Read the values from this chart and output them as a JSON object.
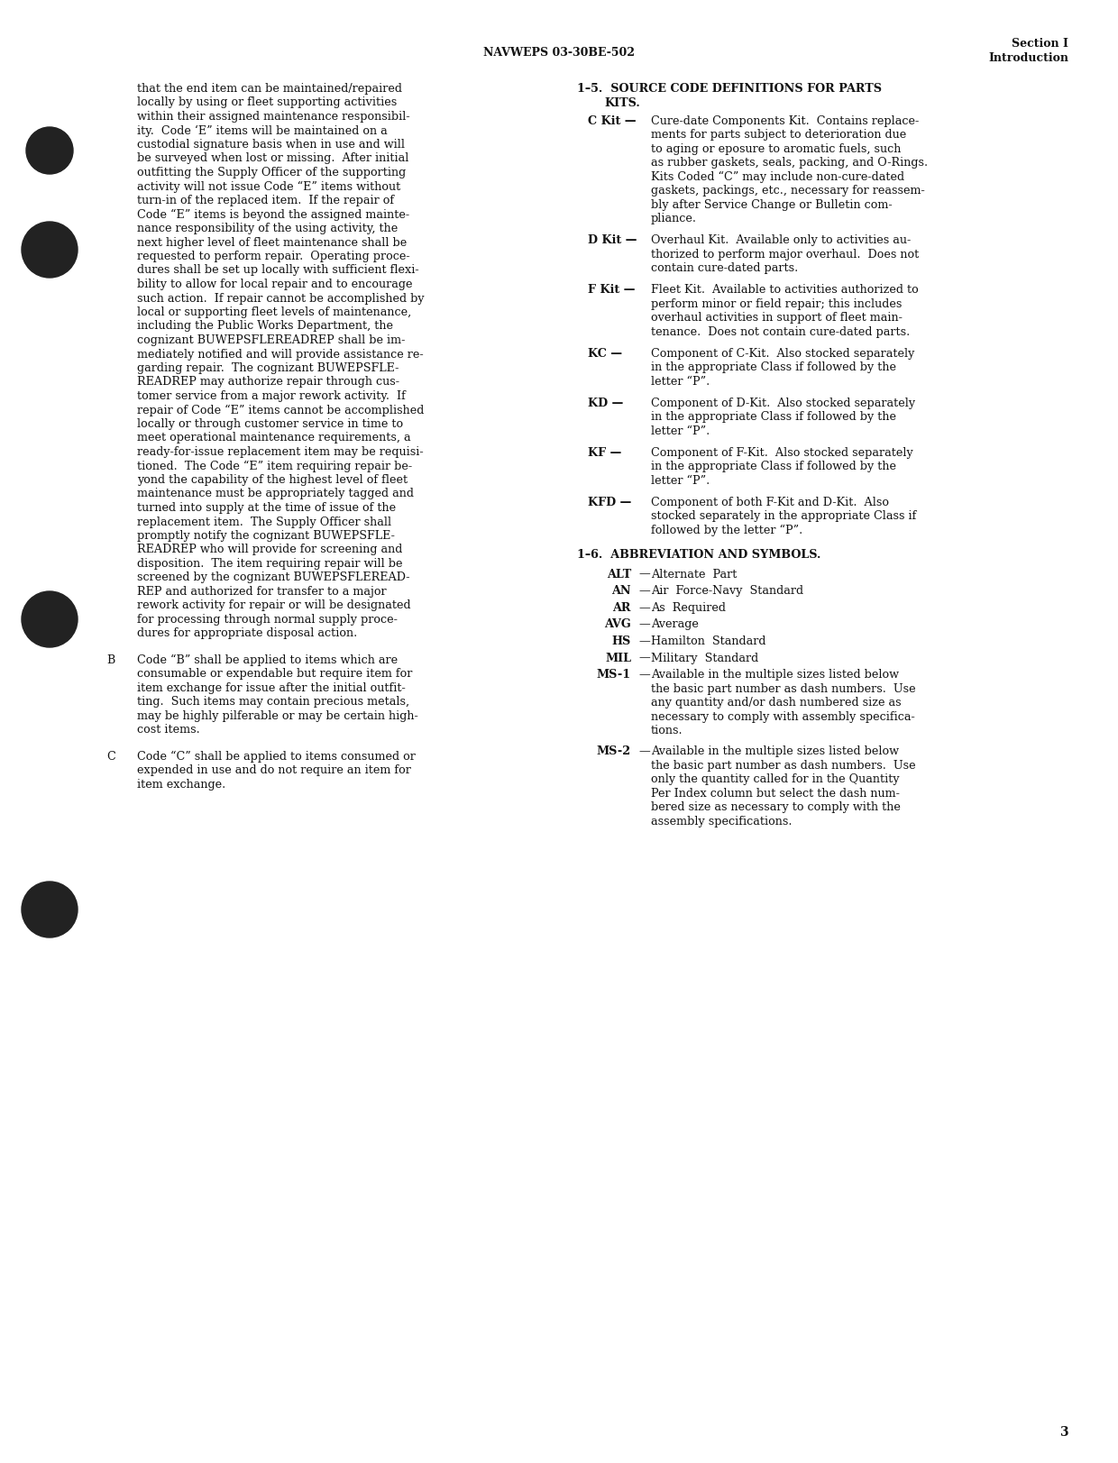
{
  "page_bg": "#ffffff",
  "header_left": "NAVWEPS 03-30BE-502",
  "header_right_line1": "Section I",
  "header_right_line2": "Introduction",
  "page_number": "3",
  "left_col_lines": [
    "that the end item can be maintained/repaired",
    "locally by using or fleet supporting activities",
    "within their assigned maintenance responsibil-",
    "ity.  Code ‘E” items will be maintained on a",
    "custodial signature basis when in use and will",
    "be surveyed when lost or missing.  After initial",
    "outfitting the Supply Officer of the supporting",
    "activity will not issue Code “E” items without",
    "turn-in of the replaced item.  If the repair of",
    "Code “E” items is beyond the assigned mainte-",
    "nance responsibility of the using activity, the",
    "next higher level of fleet maintenance shall be",
    "requested to perform repair.  Operating proce-",
    "dures shall be set up locally with sufficient flexi-",
    "bility to allow for local repair and to encourage",
    "such action.  If repair cannot be accomplished by",
    "local or supporting fleet levels of maintenance,",
    "including the Public Works Department, the",
    "cognizant BUWEPSFLEREADREP shall be im-",
    "mediately notified and will provide assistance re-",
    "garding repair.  The cognizant BUWEPSFLE-",
    "READREP may authorize repair through cus-",
    "tomer service from a major rework activity.  If",
    "repair of Code “E” items cannot be accomplished",
    "locally or through customer service in time to",
    "meet operational maintenance requirements, a",
    "ready-for-issue replacement item may be requisi-",
    "tioned.  The Code “E” item requiring repair be-",
    "yond the capability of the highest level of fleet",
    "maintenance must be appropriately tagged and",
    "turned into supply at the time of issue of the",
    "replacement item.  The Supply Officer shall",
    "promptly notify the cognizant BUWEPSFLE-",
    "READREP who will provide for screening and",
    "disposition.  The item requiring repair will be",
    "screened by the cognizant BUWEPSFLEREAD-",
    "REP and authorized for transfer to a major",
    "rework activity for repair or will be designated",
    "for processing through normal supply proce-",
    "dures for appropriate disposal action."
  ],
  "b_label": "B",
  "b_lines": [
    "Code “B” shall be applied to items which are",
    "consumable or expendable but require item for",
    "item exchange for issue after the initial outfit-",
    "ting.  Such items may contain precious metals,",
    "may be highly pilferable or may be certain high-",
    "cost items."
  ],
  "c_label": "C",
  "c_lines": [
    "Code “C” shall be applied to items consumed or",
    "expended in use and do not require an item for",
    "item exchange."
  ],
  "right_title1": "1–5.  SOURCE CODE DEFINITIONS FOR PARTS",
  "right_title2": "KITS.",
  "right_sections": [
    {
      "label": "C Kit",
      "text_lines": [
        "Cure-date Components Kit.  Contains replace-",
        "ments for parts subject to deterioration due",
        "to aging or eposure to aromatic fuels, such",
        "as rubber gaskets, seals, packing, and O-Rings.",
        "Kits Coded “C” may include non-cure-dated",
        "gaskets, packings, etc., necessary for reassem-",
        "bly after Service Change or Bulletin com-",
        "pliance."
      ]
    },
    {
      "label": "D Kit",
      "text_lines": [
        "Overhaul Kit.  Available only to activities au-",
        "thorized to perform major overhaul.  Does not",
        "contain cure-dated parts."
      ]
    },
    {
      "label": "F Kit",
      "text_lines": [
        "Fleet Kit.  Available to activities authorized to",
        "perform minor or field repair; this includes",
        "overhaul activities in support of fleet main-",
        "tenance.  Does not contain cure-dated parts."
      ]
    },
    {
      "label": "KC",
      "text_lines": [
        "Component of C-Kit.  Also stocked separately",
        "in the appropriate Class if followed by the",
        "letter “P”."
      ]
    },
    {
      "label": "KD",
      "text_lines": [
        "Component of D-Kit.  Also stocked separately",
        "in the appropriate Class if followed by the",
        "letter “P”."
      ]
    },
    {
      "label": "KF",
      "text_lines": [
        "Component of F-Kit.  Also stocked separately",
        "in the appropriate Class if followed by the",
        "letter “P”."
      ]
    },
    {
      "label": "KFD",
      "text_lines": [
        "Component of both F-Kit and D-Kit.  Also",
        "stocked separately in the appropriate Class if",
        "followed by the letter “P”."
      ]
    }
  ],
  "abbrev_title": "1–6.  ABBREVIATION AND SYMBOLS.",
  "abbreviations": [
    {
      "label": "ALT",
      "text": "Alternate  Part",
      "multiline": false
    },
    {
      "label": "AN",
      "text": "Air  Force-Navy  Standard",
      "multiline": false
    },
    {
      "label": "AR",
      "text": "As  Required",
      "multiline": false
    },
    {
      "label": "AVG",
      "text": "Average",
      "multiline": false
    },
    {
      "label": "HS",
      "text": "Hamilton  Standard",
      "multiline": false
    },
    {
      "label": "MIL",
      "text": "Military  Standard",
      "multiline": false
    },
    {
      "label": "MS-1",
      "multiline": true,
      "text_lines": [
        "Available in the multiple sizes listed below",
        "the basic part number as dash numbers.  Use",
        "any quantity and/or dash numbered size as",
        "necessary to comply with assembly specifica-",
        "tions."
      ]
    },
    {
      "label": "MS-2",
      "multiline": true,
      "text_lines": [
        "Available in the multiple sizes listed below",
        "the basic part number as dash numbers.  Use",
        "only the quantity called for in the Quantity",
        "Per Index column but select the dash num-",
        "bered size as necessary to comply with the",
        "assembly specifications."
      ]
    }
  ]
}
